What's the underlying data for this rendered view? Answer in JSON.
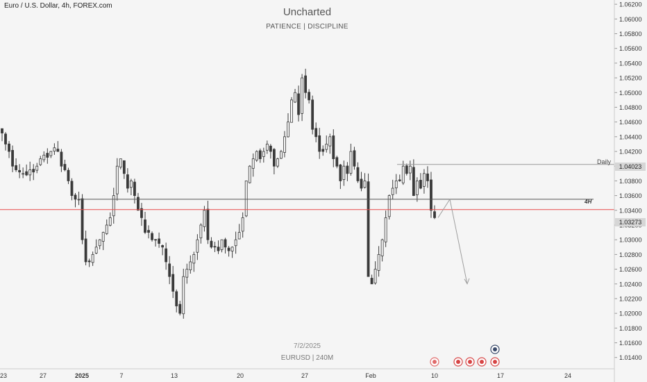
{
  "header": {
    "symbol_line": "Euro / U.S. Dollar, 4h, FOREX.com",
    "brand": "Uncharted",
    "tagline": "PATIENCE  |  DISCIPLINE"
  },
  "footer": {
    "date": "7/2/2025",
    "symbol_timeframe": "EURUSD | 240M"
  },
  "annotations": {
    "daily_label": "Daily",
    "h4_label": "4H",
    "daily_price_tag": "1.04023",
    "last_price_tag": "1.03273"
  },
  "colors": {
    "background": "#f5f5f5",
    "candle": "#3a3a3a",
    "red_level": "#e84b4b",
    "daily_line": "#9a9a9a",
    "h4_line": "#555555",
    "projection": "#9e9e9e"
  },
  "chart_data": {
    "type": "candlestick",
    "title": "Euro / U.S. Dollar, 4h, FOREX.com",
    "ylim": [
      1.0132,
      1.0628
    ],
    "y_ticks": [
      "1.06200",
      "1.06000",
      "1.05800",
      "1.05600",
      "1.05400",
      "1.05200",
      "1.05000",
      "1.04800",
      "1.04600",
      "1.04400",
      "1.04200",
      "1.04000",
      "1.03800",
      "1.03600",
      "1.03400",
      "1.03200",
      "1.03000",
      "1.02800",
      "1.02600",
      "1.02400",
      "1.02200",
      "1.02000",
      "1.01800",
      "1.01600",
      "1.01400"
    ],
    "x_ticks": [
      "23",
      "27",
      "2025",
      "7",
      "13",
      "20",
      "27",
      "Feb",
      "10",
      "17",
      "24"
    ],
    "levels": [
      {
        "name": "Daily",
        "price": 1.04023
      },
      {
        "name": "4H",
        "price": 1.0355
      },
      {
        "name": "red",
        "price": 1.0341
      }
    ],
    "last_price": 1.03273,
    "path": [
      1.0445,
      1.043,
      1.042,
      1.04,
      1.0395,
      1.0392,
      1.039,
      1.0388,
      1.0395,
      1.0392,
      1.04,
      1.041,
      1.0415,
      1.0412,
      1.042,
      1.0425,
      1.042,
      1.04,
      1.0395,
      1.038,
      1.036,
      1.0355,
      1.0355,
      1.03,
      1.027,
      1.027,
      1.028,
      1.029,
      1.03,
      1.031,
      1.032,
      1.033,
      1.036,
      1.04,
      1.041,
      1.039,
      1.037,
      1.038,
      1.036,
      1.034,
      1.033,
      1.031,
      1.031,
      1.03,
      1.03,
      1.0295,
      1.029,
      1.027,
      1.025,
      1.023,
      1.021,
      1.02,
      1.025,
      1.026,
      1.027,
      1.028,
      1.03,
      1.032,
      1.034,
      1.03,
      1.029,
      1.029,
      1.0285,
      1.03,
      1.029,
      1.0285,
      1.029,
      1.03,
      1.031,
      1.033,
      1.038,
      1.04,
      1.041,
      1.042,
      1.041,
      1.042,
      1.043,
      1.042,
      1.04,
      1.041,
      1.042,
      1.044,
      1.046,
      1.049,
      1.05,
      1.047,
      1.052,
      1.05,
      1.049,
      1.045,
      1.044,
      1.042,
      1.042,
      1.043,
      1.044,
      1.041,
      1.04,
      1.038,
      1.04,
      1.039,
      1.042,
      1.04,
      1.038,
      1.037,
      1.038,
      1.025,
      1.024,
      1.026,
      1.028,
      1.03,
      1.033,
      1.036,
      1.037,
      1.038,
      1.038,
      1.04,
      1.039,
      1.04,
      1.036,
      1.038,
      1.037,
      1.039,
      1.038,
      1.034,
      1.033
    ],
    "projection": [
      1.033,
      1.0355,
      1.024
    ]
  }
}
